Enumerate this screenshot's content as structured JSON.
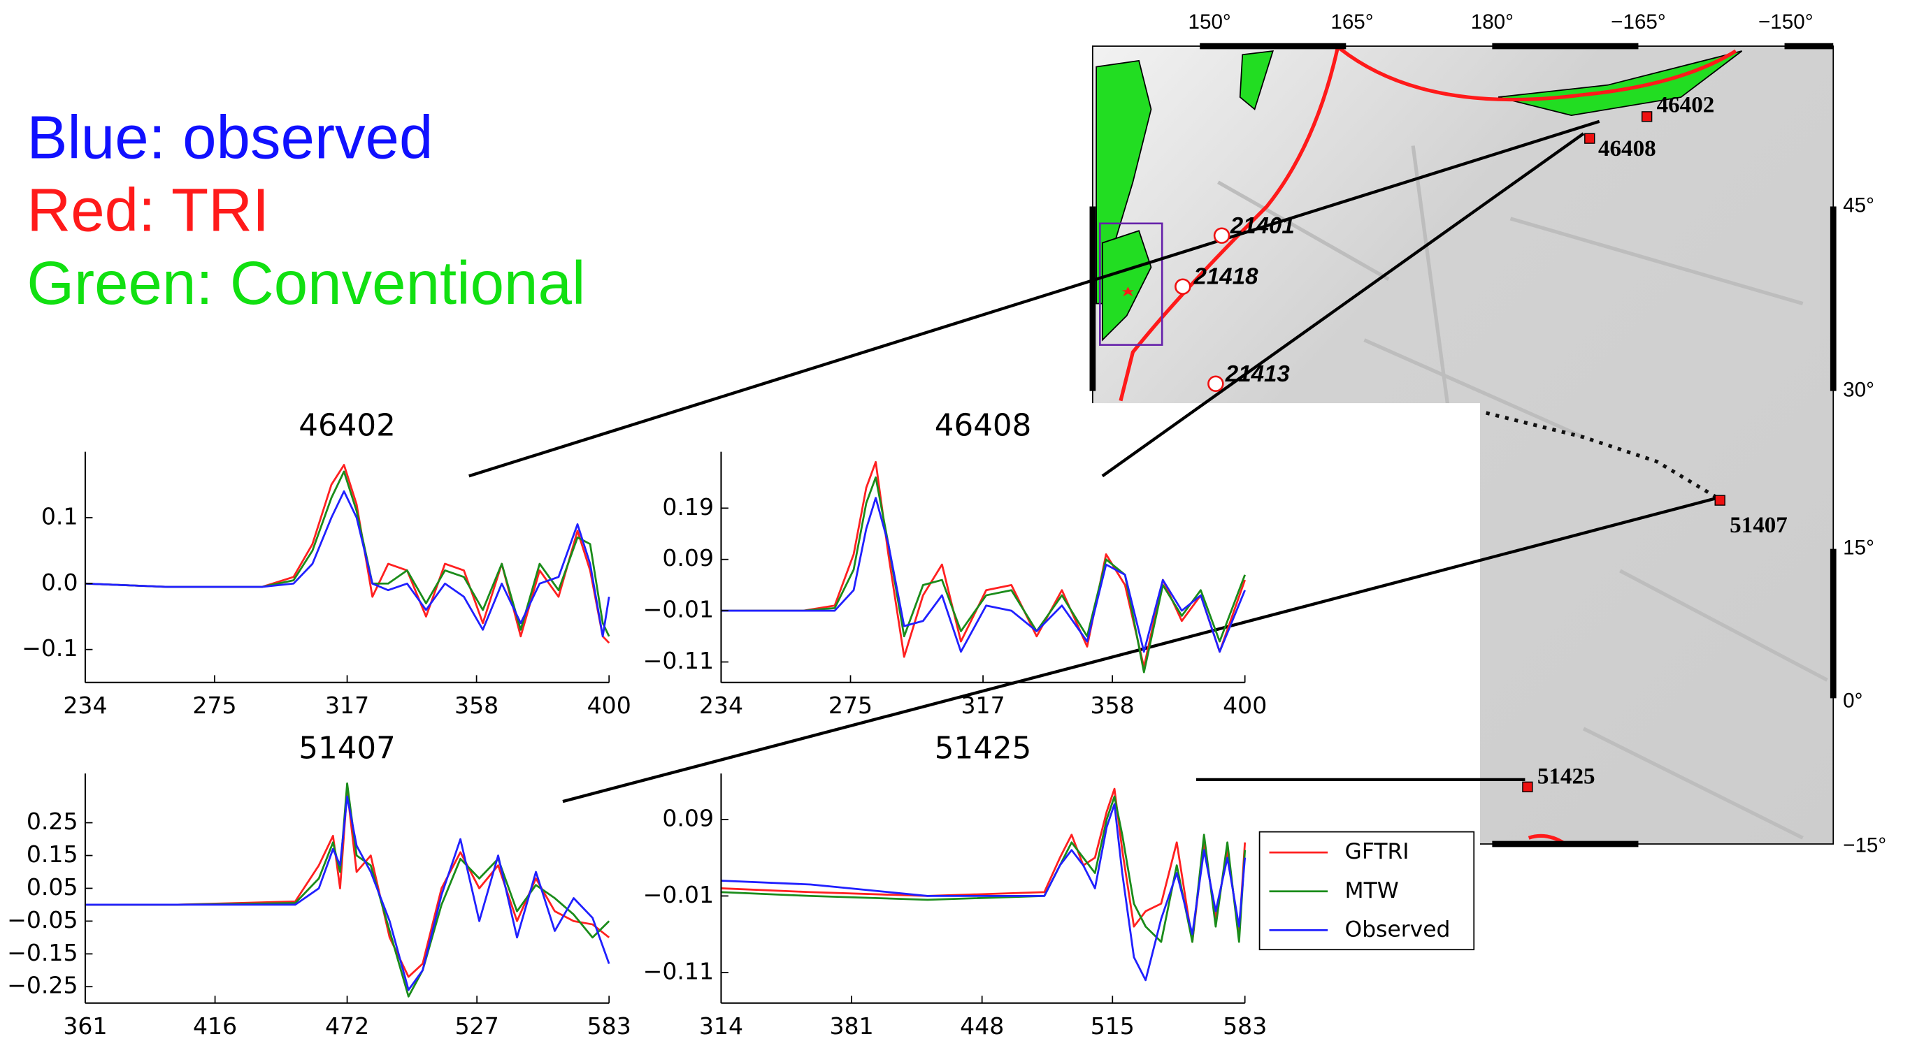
{
  "annotations": [
    {
      "text": "Blue: observed",
      "color": "#1010ff"
    },
    {
      "text": "Red: TRI",
      "color": "#ff1a1a"
    },
    {
      "text": "Green: Conventional",
      "color": "#11e011"
    }
  ],
  "map": {
    "lon_labels": [
      "150°",
      "165°",
      "180°",
      "−165°",
      "−150°"
    ],
    "lat_labels": [
      "45°",
      "30°",
      "15°",
      "0°",
      "−15°"
    ],
    "stations": [
      "46402",
      "46408",
      "21401",
      "21418",
      "21413",
      "51407",
      "51425"
    ]
  },
  "chart_data": [
    {
      "type": "line",
      "title": "46402",
      "x": [
        234,
        260,
        290,
        300,
        306,
        312,
        316,
        320,
        325,
        330,
        336,
        342,
        348,
        354,
        360,
        366,
        372,
        378,
        384,
        390,
        394,
        398,
        400
      ],
      "series": [
        {
          "color": "#ff2020",
          "values": [
            0,
            -0.005,
            -0.005,
            0.01,
            0.06,
            0.15,
            0.18,
            0.12,
            -0.02,
            0.03,
            0.02,
            -0.05,
            0.03,
            0.02,
            -0.06,
            0.03,
            -0.08,
            0.02,
            -0.02,
            0.08,
            0.02,
            -0.08,
            -0.09
          ]
        },
        {
          "color": "#1a8c1a",
          "values": [
            0,
            -0.005,
            -0.005,
            0.005,
            0.05,
            0.13,
            0.17,
            0.11,
            0.0,
            0.0,
            0.02,
            -0.03,
            0.02,
            0.01,
            -0.04,
            0.03,
            -0.07,
            0.03,
            -0.01,
            0.07,
            0.06,
            -0.06,
            -0.08
          ]
        },
        {
          "color": "#2020ff",
          "values": [
            0,
            -0.005,
            -0.005,
            0.0,
            0.03,
            0.1,
            0.14,
            0.1,
            0.0,
            -0.01,
            0.0,
            -0.04,
            0.0,
            -0.02,
            -0.07,
            0.0,
            -0.06,
            0.0,
            0.01,
            0.09,
            0.03,
            -0.08,
            -0.02
          ]
        }
      ],
      "xlim": [
        234,
        400
      ],
      "xticks": [
        234,
        275,
        317,
        358,
        400
      ],
      "ylim": [
        -0.15,
        0.2
      ],
      "yticks": [
        0.1,
        {
          "value": 0,
          "label": "0.0"
        },
        {
          "value": -0.1,
          "label": "−0.1"
        }
      ]
    },
    {
      "type": "line",
      "title": "46408",
      "x": [
        234,
        260,
        270,
        276,
        280,
        283,
        287,
        292,
        298,
        304,
        310,
        318,
        326,
        334,
        342,
        350,
        356,
        362,
        368,
        374,
        380,
        386,
        392,
        400
      ],
      "series": [
        {
          "color": "#ff2020",
          "values": [
            -0.01,
            -0.01,
            0.0,
            0.1,
            0.23,
            0.28,
            0.1,
            -0.1,
            0.02,
            0.08,
            -0.07,
            0.03,
            0.04,
            -0.06,
            0.03,
            -0.08,
            0.1,
            0.04,
            -0.12,
            0.05,
            -0.03,
            0.02,
            -0.09,
            0.05
          ]
        },
        {
          "color": "#1a8c1a",
          "values": [
            -0.01,
            -0.01,
            -0.005,
            0.07,
            0.2,
            0.25,
            0.12,
            -0.06,
            0.04,
            0.05,
            -0.05,
            0.02,
            0.03,
            -0.05,
            0.02,
            -0.06,
            0.09,
            0.06,
            -0.13,
            0.04,
            -0.02,
            0.03,
            -0.07,
            0.06
          ]
        },
        {
          "color": "#2020ff",
          "values": [
            -0.01,
            -0.01,
            -0.01,
            0.03,
            0.15,
            0.21,
            0.12,
            -0.04,
            -0.03,
            0.02,
            -0.09,
            0.0,
            -0.01,
            -0.05,
            0.0,
            -0.07,
            0.08,
            0.06,
            -0.09,
            0.05,
            -0.01,
            0.02,
            -0.09,
            0.03
          ]
        }
      ],
      "xlim": [
        234,
        400
      ],
      "xticks": [
        234,
        275,
        317,
        358,
        400
      ],
      "ylim": [
        -0.15,
        0.3
      ],
      "yticks": [
        0.19,
        0.09,
        {
          "value": -0.01,
          "label": "−0.01"
        },
        {
          "value": -0.11,
          "label": "−0.11"
        }
      ]
    },
    {
      "type": "line",
      "title": "51407",
      "x": [
        361,
        400,
        450,
        460,
        466,
        469,
        472,
        476,
        482,
        490,
        498,
        504,
        512,
        520,
        528,
        536,
        544,
        552,
        560,
        568,
        576,
        583
      ],
      "series": [
        {
          "color": "#ff2020",
          "values": [
            0,
            0,
            0.01,
            0.12,
            0.21,
            0.05,
            0.35,
            0.1,
            0.15,
            -0.1,
            -0.22,
            -0.18,
            0.05,
            0.16,
            0.05,
            0.12,
            -0.05,
            0.08,
            -0.02,
            -0.05,
            -0.06,
            -0.1
          ]
        },
        {
          "color": "#1a8c1a",
          "values": [
            0,
            0,
            0.005,
            0.08,
            0.19,
            0.1,
            0.37,
            0.15,
            0.12,
            -0.08,
            -0.28,
            -0.2,
            0.0,
            0.14,
            0.08,
            0.14,
            -0.02,
            0.06,
            0.02,
            -0.03,
            -0.1,
            -0.05
          ]
        },
        {
          "color": "#2020ff",
          "values": [
            0,
            0,
            0.0,
            0.05,
            0.17,
            0.12,
            0.33,
            0.18,
            0.1,
            -0.05,
            -0.26,
            -0.2,
            0.03,
            0.2,
            -0.05,
            0.15,
            -0.1,
            0.1,
            -0.08,
            0.02,
            -0.04,
            -0.18
          ]
        }
      ],
      "xlim": [
        361,
        583
      ],
      "xticks": [
        361,
        416,
        472,
        527,
        583
      ],
      "ylim": [
        -0.3,
        0.4
      ],
      "yticks": [
        0.25,
        0.15,
        0.05,
        {
          "value": -0.05,
          "label": "−0.05"
        },
        {
          "value": -0.15,
          "label": "−0.15"
        },
        {
          "value": -0.25,
          "label": "−0.25"
        }
      ]
    },
    {
      "type": "line",
      "title": "51425",
      "x": [
        314,
        360,
        420,
        480,
        488,
        494,
        500,
        506,
        512,
        516,
        520,
        526,
        532,
        540,
        548,
        556,
        562,
        568,
        574,
        580,
        583
      ],
      "series": [
        {
          "name": "GFTRI",
          "color": "#ff2020",
          "values": [
            0.0,
            -0.005,
            -0.01,
            -0.005,
            0.04,
            0.07,
            0.03,
            0.04,
            0.1,
            0.13,
            0.05,
            -0.05,
            -0.03,
            -0.02,
            0.06,
            -0.07,
            0.06,
            -0.04,
            0.05,
            -0.06,
            0.06
          ]
        },
        {
          "name": "MTW",
          "color": "#1a8c1a",
          "values": [
            -0.005,
            -0.01,
            -0.015,
            -0.01,
            0.03,
            0.06,
            0.04,
            0.02,
            0.09,
            0.12,
            0.07,
            -0.02,
            -0.05,
            -0.07,
            0.03,
            -0.07,
            0.07,
            -0.05,
            0.06,
            -0.07,
            0.05
          ]
        },
        {
          "name": "Observed",
          "color": "#2020ff",
          "values": [
            0.01,
            0.005,
            -0.01,
            -0.01,
            0.03,
            0.05,
            0.03,
            0.0,
            0.08,
            0.11,
            0.02,
            -0.09,
            -0.12,
            -0.04,
            0.02,
            -0.06,
            0.05,
            -0.03,
            0.04,
            -0.05,
            0.04
          ]
        }
      ],
      "xlim": [
        314,
        583
      ],
      "xticks": [
        314,
        381,
        448,
        515,
        583
      ],
      "ylim": [
        -0.15,
        0.15
      ],
      "yticks": [
        0.09,
        {
          "value": -0.01,
          "label": "−0.01"
        },
        {
          "value": -0.11,
          "label": "−0.11"
        }
      ]
    }
  ]
}
